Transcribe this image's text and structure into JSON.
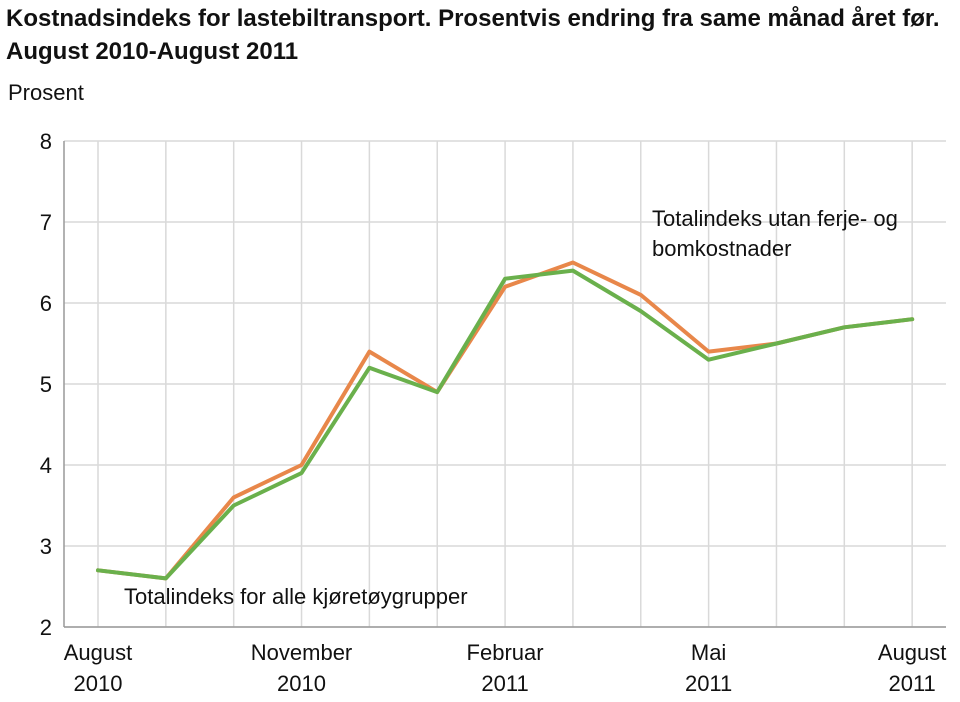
{
  "chart_data": {
    "type": "line",
    "title": "Kostnadsindeks for lastebiltransport. Prosentvis endring fra same månad året før. August 2010-August 2011",
    "ylabel": "Prosent",
    "xlabel": "",
    "ylim": [
      2,
      8
    ],
    "y_ticks": [
      "2",
      "3",
      "4",
      "5",
      "6",
      "7",
      "8"
    ],
    "x": [
      "2010-08",
      "2010-09",
      "2010-10",
      "2010-11",
      "2010-12",
      "2011-01",
      "2011-02",
      "2011-03",
      "2011-04",
      "2011-05",
      "2011-06",
      "2011-07",
      "2011-08"
    ],
    "x_tick_labels": [
      {
        "line1": "August",
        "line2": "2010"
      },
      {
        "line1": "November",
        "line2": "2010"
      },
      {
        "line1": "Februar",
        "line2": "2011"
      },
      {
        "line1": "Mai",
        "line2": "2011"
      },
      {
        "line1": "August",
        "line2": "2011"
      }
    ],
    "grid": true,
    "series": [
      {
        "name": "Totalindeks utan ferje- og bomkostnader",
        "color": "#e8874a",
        "values": [
          2.7,
          2.6,
          3.6,
          4.0,
          5.4,
          4.9,
          6.2,
          6.5,
          6.1,
          5.4,
          5.5,
          5.7,
          5.8
        ]
      },
      {
        "name": "Totalindeks for alle kjøretøygrupper",
        "color": "#6ab04c",
        "values": [
          2.7,
          2.6,
          3.5,
          3.9,
          5.2,
          4.9,
          6.3,
          6.4,
          5.9,
          5.3,
          5.5,
          5.7,
          5.8
        ]
      }
    ],
    "annotations": [
      {
        "line1": "Totalindeks utan ferje- og",
        "line2": "bomkostnader"
      },
      {
        "line1": "Totalindeks for alle kjøretøygrupper"
      }
    ]
  }
}
